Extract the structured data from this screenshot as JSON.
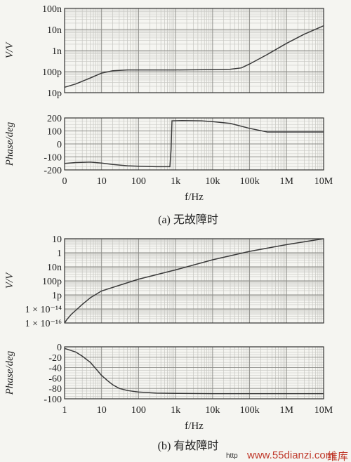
{
  "chart_data": [
    {
      "type": "line",
      "x_scale": "log",
      "y_scale": "log",
      "ylabel": "V/V",
      "x_ticks": [
        "",
        "10",
        "100",
        "1k",
        "10k",
        "100k",
        "1M",
        "10M"
      ],
      "y_ticks": [
        "10p",
        "100p",
        "1n",
        "10n",
        "100n"
      ],
      "xlim": [
        1,
        10000000
      ],
      "ylim": [
        1e-11,
        1e-07
      ],
      "grid": true,
      "series": [
        {
          "x": [
            1,
            2,
            5,
            10,
            20,
            50,
            100,
            1000,
            10000,
            30000,
            60000,
            100000,
            300000,
            1000000,
            3000000,
            10000000
          ],
          "y": [
            1.8e-11,
            2.6e-11,
            5e-11,
            8.5e-11,
            1.1e-10,
            1.2e-10,
            1.2e-10,
            1.2e-10,
            1.25e-10,
            1.3e-10,
            1.5e-10,
            2.3e-10,
            6.5e-10,
            2.2e-09,
            6e-09,
            1.5e-08
          ]
        }
      ]
    },
    {
      "type": "line",
      "x_scale": "log",
      "ylabel": "Phase/deg",
      "xlabel": "f/Hz",
      "x_ticks": [
        "0",
        "10",
        "100",
        "1k",
        "10k",
        "100k",
        "1M",
        "10M"
      ],
      "y_ticks": [
        "-200",
        "-100",
        "0",
        "100",
        "200"
      ],
      "xlim": [
        1,
        10000000
      ],
      "ylim": [
        -200,
        200
      ],
      "grid": true,
      "series": [
        {
          "x": [
            1,
            2,
            5,
            10,
            20,
            50,
            100,
            300,
            700,
            750,
            800,
            1500,
            5000,
            10000,
            30000,
            100000,
            300000,
            1000000,
            10000000
          ],
          "y": [
            -150,
            -143,
            -140,
            -147,
            -158,
            -168,
            -172,
            -175,
            -175,
            -50,
            178,
            180,
            178,
            172,
            158,
            120,
            92,
            92,
            92
          ]
        }
      ]
    },
    {
      "type": "line",
      "x_scale": "log",
      "y_scale": "log",
      "ylabel": "V/V",
      "x_ticks": [
        "",
        "10",
        "100",
        "1k",
        "10k",
        "100k",
        "1M",
        "10M"
      ],
      "y_ticks": [
        "1 × 10⁻¹⁶",
        "1 × 10⁻¹⁴",
        "1p",
        "100p",
        "10n",
        "1",
        "10"
      ],
      "y_tick_values": [
        1e-16,
        1e-14,
        1e-12,
        1e-10,
        1e-08,
        1,
        10
      ],
      "xlim": [
        1,
        10000000
      ],
      "grid": true,
      "series": [
        {
          "x": [
            1,
            1.15,
            1.5,
            2,
            3,
            5,
            10,
            100,
            1000,
            10000,
            100000,
            1000000,
            10000000
          ],
          "y_pos": [
            0.0,
            0.04,
            0.1,
            0.15,
            0.22,
            0.3,
            0.38,
            0.52,
            0.63,
            0.75,
            0.85,
            0.93,
            1.0
          ]
        }
      ]
    },
    {
      "type": "line",
      "x_scale": "log",
      "ylabel": "Phase/deg",
      "xlabel": "f/Hz",
      "x_ticks": [
        "1",
        "10",
        "100",
        "1k",
        "10k",
        "100k",
        "1M",
        "10M"
      ],
      "y_ticks": [
        "-100",
        "-80",
        "-60",
        "-40",
        "-20",
        "0"
      ],
      "xlim": [
        1,
        10000000
      ],
      "ylim": [
        -100,
        0
      ],
      "grid": true,
      "series": [
        {
          "x": [
            1,
            2,
            3,
            5,
            7,
            10,
            15,
            20,
            30,
            50,
            100,
            300,
            1000,
            10000,
            10000000
          ],
          "y": [
            -3,
            -10,
            -18,
            -30,
            -42,
            -55,
            -66,
            -73,
            -80,
            -84,
            -87,
            -89,
            -89.5,
            -90,
            -90
          ]
        }
      ]
    }
  ],
  "captions": [
    "(a)  无故障时",
    "(b)  有故障时"
  ],
  "watermark": {
    "site": "www.55dianzi.com",
    "prefix": "http",
    "corner": "维库"
  }
}
